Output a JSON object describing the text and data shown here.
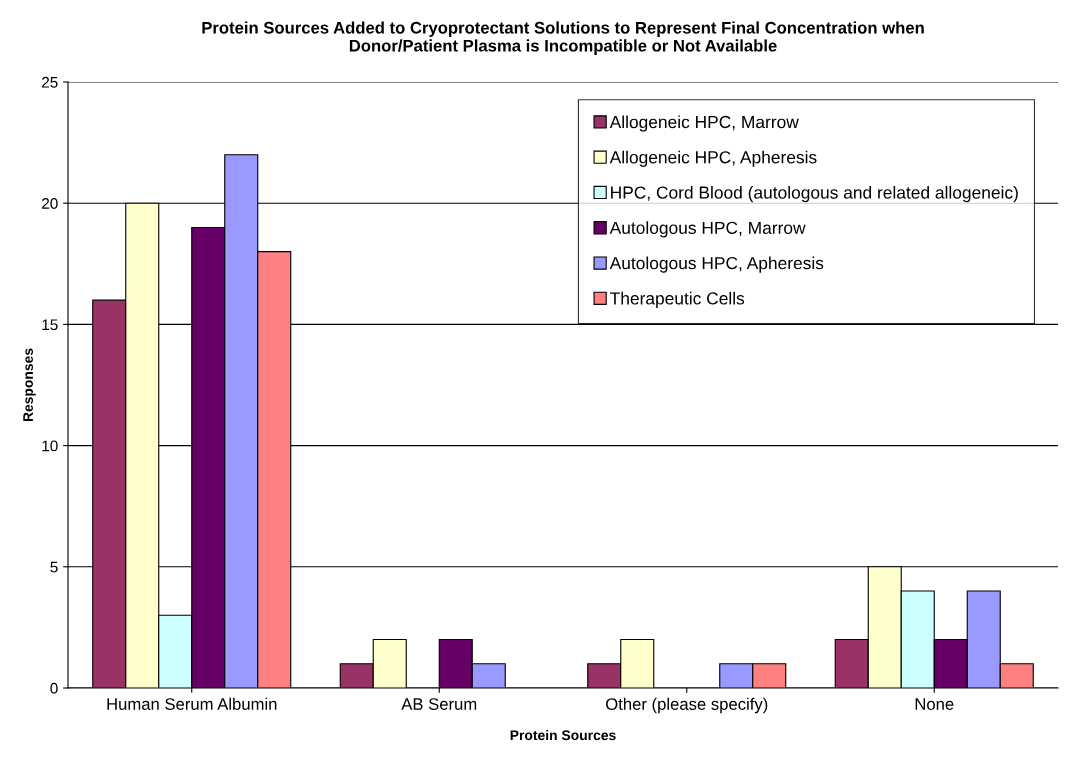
{
  "chart_data": {
    "type": "bar",
    "title": "Protein Sources Added to Cryoprotectant Solutions to Represent Final Concentration when\nDonor/Patient Plasma is Incompatible or Not Available",
    "xlabel": "Protein Sources",
    "ylabel": "Responses",
    "categories": [
      "Human Serum Albumin",
      "AB Serum",
      "Other (please specify)",
      "None"
    ],
    "series": [
      {
        "name": "Allogeneic HPC, Marrow",
        "color": "#993366",
        "values": [
          16,
          1,
          1,
          2
        ]
      },
      {
        "name": "Allogeneic HPC, Apheresis",
        "color": "#ffffcc",
        "values": [
          20,
          2,
          2,
          5
        ]
      },
      {
        "name": "HPC, Cord Blood (autologous and related allogeneic)",
        "color": "#ccffff",
        "values": [
          3,
          0,
          0,
          4
        ]
      },
      {
        "name": "Autologous HPC, Marrow",
        "color": "#660066",
        "values": [
          19,
          2,
          0,
          2
        ]
      },
      {
        "name": "Autologous HPC, Apheresis",
        "color": "#9999ff",
        "values": [
          22,
          1,
          1,
          4
        ]
      },
      {
        "name": "Therapeutic Cells",
        "color": "#ff8080",
        "values": [
          18,
          0,
          1,
          1
        ]
      }
    ],
    "ylim": [
      0,
      25
    ],
    "yticks": [
      0,
      5,
      10,
      15,
      20,
      25
    ],
    "grid": "y",
    "legend": "top right"
  }
}
